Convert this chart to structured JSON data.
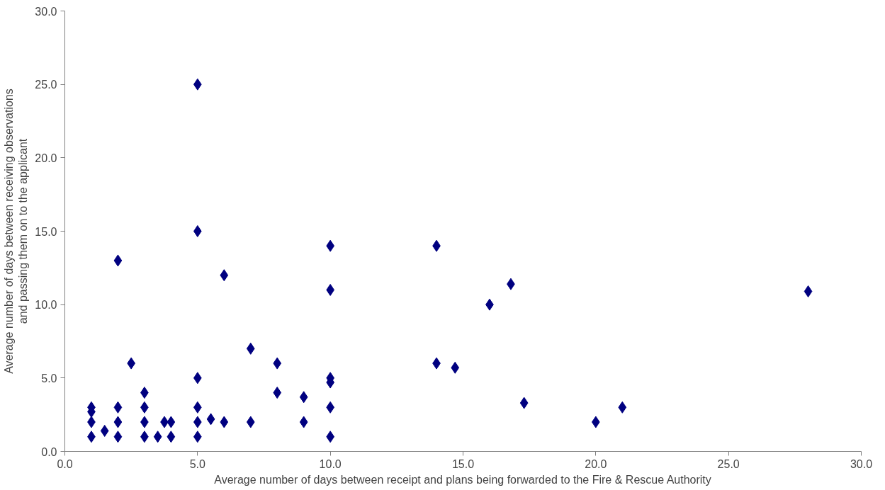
{
  "chart_data": {
    "type": "scatter",
    "xlabel": "Average number of days between receipt and plans being forwarded to the Fire & Rescue Authority",
    "ylabel": "Average number of days between receiving observations and passing them on to the applicant",
    "x": [
      1,
      1,
      1,
      1,
      1.5,
      2,
      2,
      2,
      2,
      2.5,
      3,
      3,
      3,
      3,
      3.5,
      3.75,
      4,
      4,
      5,
      5,
      5,
      5,
      5,
      5,
      5.5,
      6,
      6,
      7,
      7,
      8,
      8,
      9,
      9,
      10,
      10,
      10,
      10,
      10,
      10,
      14,
      14,
      14.7,
      16,
      16.8,
      17.3,
      20,
      21,
      28
    ],
    "values": [
      3,
      2.7,
      2,
      1,
      1.4,
      13,
      3,
      2,
      1,
      6,
      4,
      3,
      2,
      1,
      1,
      2,
      2,
      1,
      25,
      15,
      5,
      3,
      2,
      1,
      2.2,
      12,
      2,
      7,
      2,
      6,
      4,
      3.7,
      2,
      14,
      11,
      5,
      4.7,
      3,
      1,
      14,
      6,
      5.7,
      10,
      11.4,
      3.3,
      2,
      3,
      10.9
    ],
    "color": "#000080",
    "marker": "diamond",
    "xlim": [
      0,
      30
    ],
    "ylim": [
      0,
      30
    ],
    "xticks": [
      {
        "value": 0,
        "label": "0.0"
      },
      {
        "value": 5,
        "label": "5.0"
      },
      {
        "value": 10,
        "label": "10.0"
      },
      {
        "value": 15,
        "label": "15.0"
      },
      {
        "value": 20,
        "label": "20.0"
      },
      {
        "value": 25,
        "label": "25.0"
      },
      {
        "value": 30,
        "label": "30.0"
      }
    ],
    "yticks": [
      {
        "value": 0,
        "label": "0.0"
      },
      {
        "value": 5,
        "label": "5.0"
      },
      {
        "value": 10,
        "label": "10.0"
      },
      {
        "value": 15,
        "label": "15.0"
      },
      {
        "value": 20,
        "label": "20.0"
      },
      {
        "value": 25,
        "label": "25.0"
      },
      {
        "value": 30,
        "label": "30.0"
      }
    ],
    "grid": false
  }
}
